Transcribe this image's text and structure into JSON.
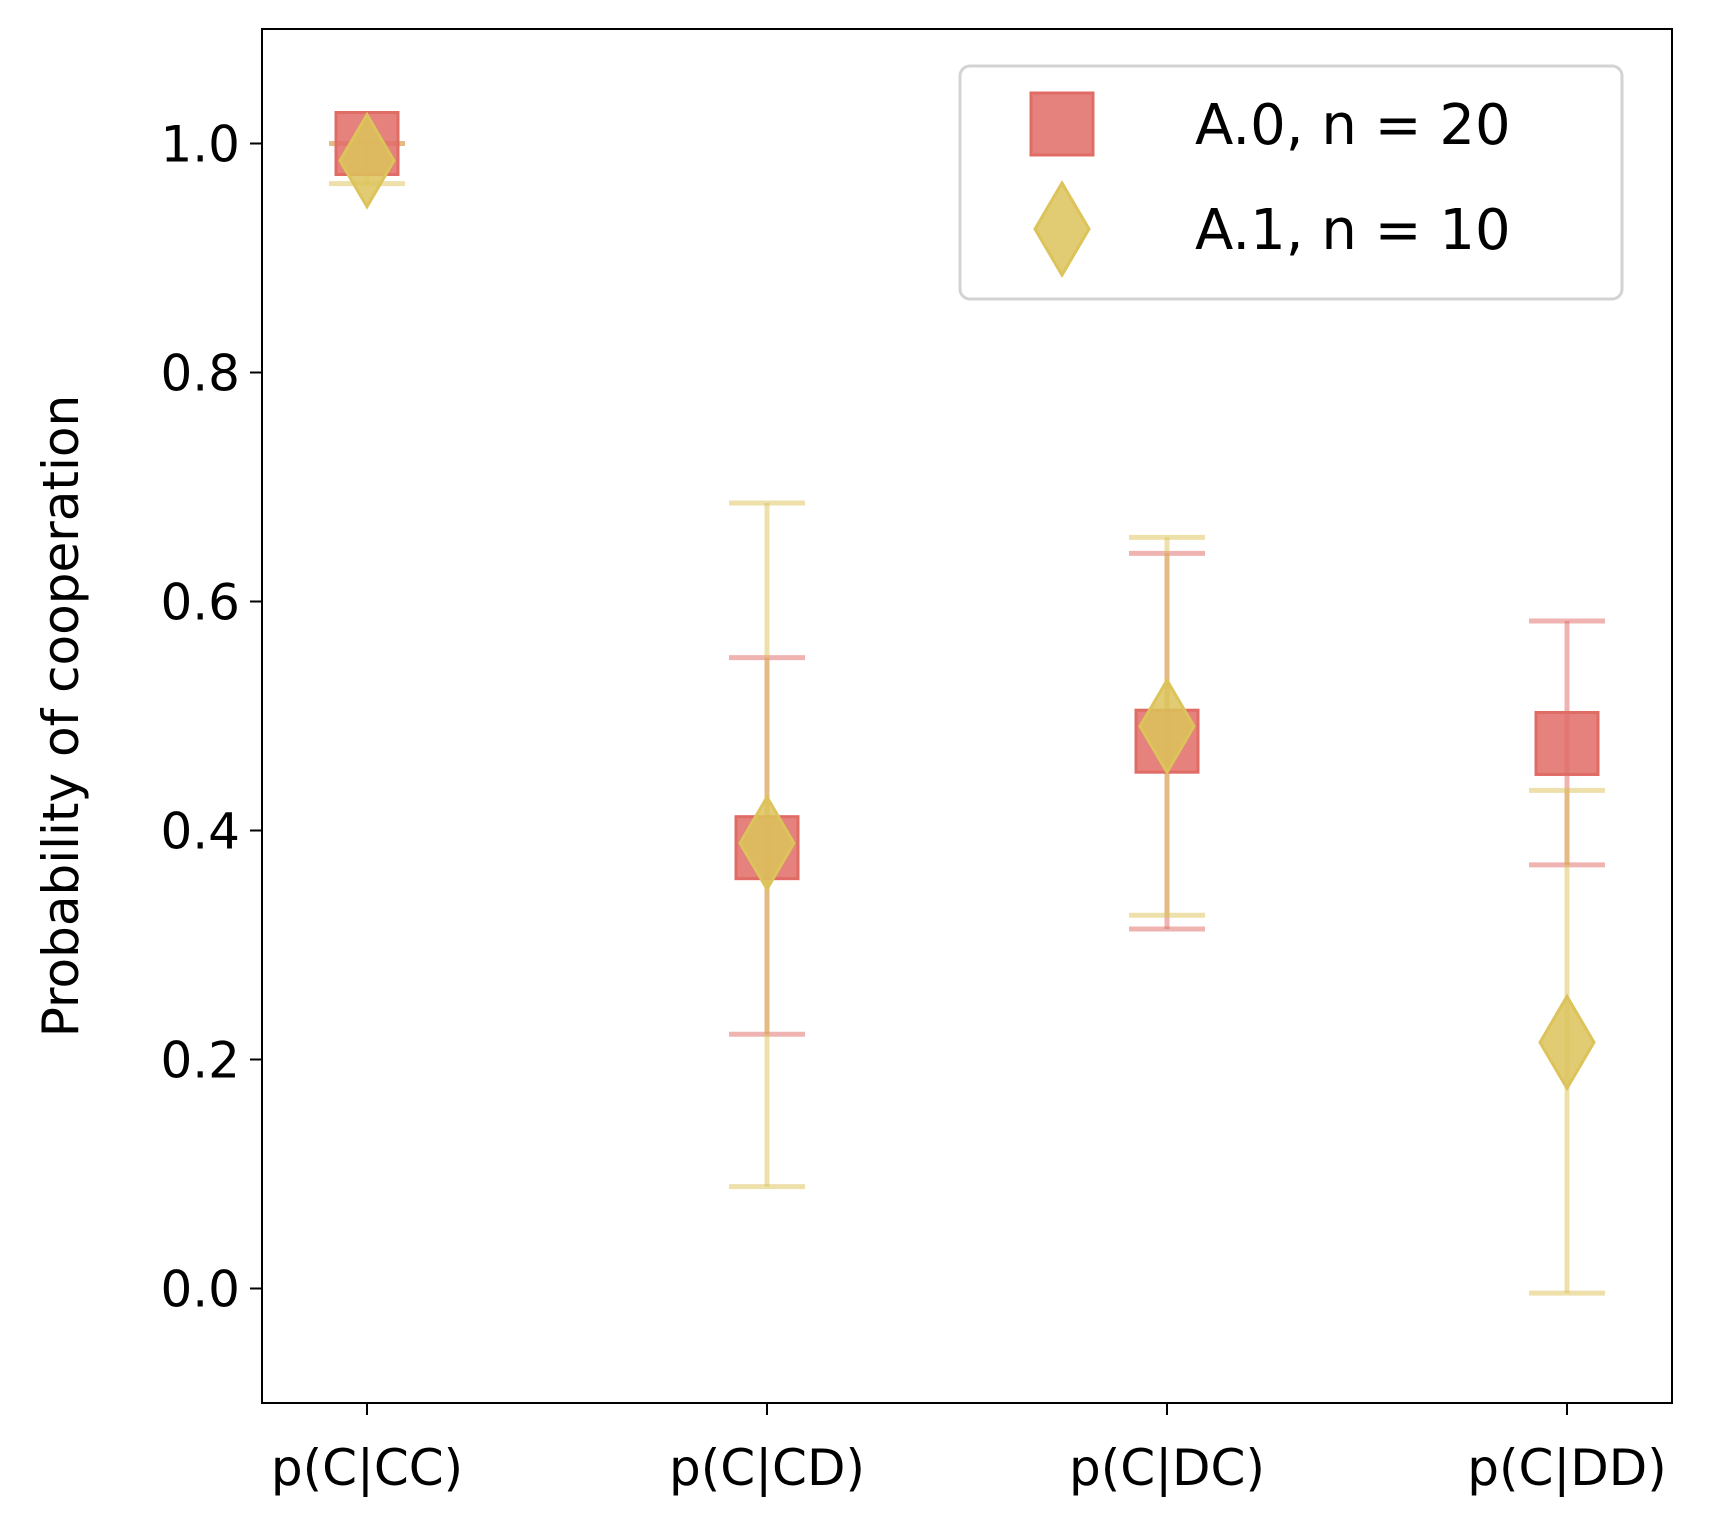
{
  "chart_data": {
    "type": "scatter",
    "categories": [
      "p(C|CC)",
      "p(C|CD)",
      "p(C|DC)",
      "p(C|DD)"
    ],
    "ylabel": "Probability of cooperation",
    "xlabel": "",
    "ylim": [
      -0.1,
      1.1
    ],
    "yticks": [
      "0.0",
      "0.2",
      "0.4",
      "0.6",
      "0.8",
      "1.0"
    ],
    "ytick_values": [
      0.0,
      0.2,
      0.4,
      0.6,
      0.8,
      1.0
    ],
    "legend_position": "upper right",
    "grid": false,
    "series": [
      {
        "name": "A.0, n = 20",
        "marker": "square",
        "color": "#e06c66",
        "values": [
          1.0,
          0.385,
          0.478,
          0.476
        ],
        "err_low": [
          1.0,
          0.222,
          0.314,
          0.37
        ],
        "err_high": [
          1.0,
          0.551,
          0.642,
          0.583
        ]
      },
      {
        "name": "A.1, n = 10",
        "marker": "diamond",
        "color": "#dcc35a",
        "values": [
          0.985,
          0.389,
          0.491,
          0.215
        ],
        "err_low": [
          0.965,
          0.089,
          0.326,
          -0.004
        ],
        "err_high": [
          1.0,
          0.686,
          0.656,
          0.435
        ]
      }
    ]
  }
}
